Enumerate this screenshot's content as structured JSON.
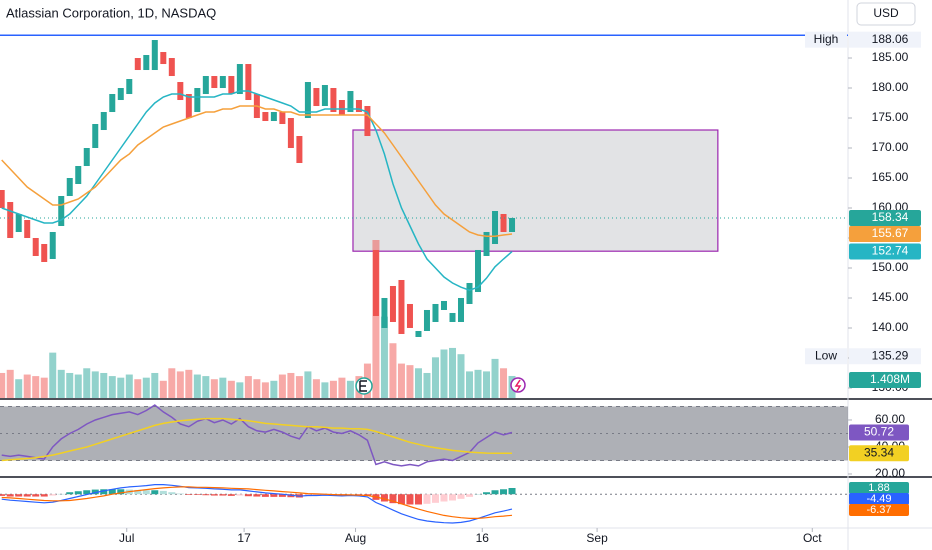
{
  "chart_data": [
    {
      "type": "candlestick",
      "title": "Atlassian Corporation, 1D, NASDAQ",
      "currency": "USD",
      "x": [
        0,
        1,
        2,
        3,
        4,
        5,
        6,
        7,
        8,
        9,
        10,
        11,
        12,
        13,
        14,
        15,
        16,
        17,
        18,
        19,
        20,
        21,
        22,
        23,
        24,
        25,
        26,
        27,
        28,
        29,
        30,
        31,
        32,
        33,
        34,
        35,
        36,
        37,
        38,
        39,
        40,
        41,
        42,
        43,
        44,
        45,
        46,
        47,
        48,
        49,
        50,
        51,
        52,
        53,
        54,
        55,
        56,
        57,
        58,
        59,
        60
      ],
      "open": [
        163,
        161,
        156,
        158,
        155,
        154,
        151.5,
        157,
        162,
        164,
        167,
        170,
        173,
        176,
        178,
        179,
        185,
        183,
        183,
        186,
        185,
        181,
        179,
        176,
        179,
        182,
        180,
        182,
        179,
        184,
        179,
        176,
        174.5,
        176,
        175,
        172,
        175,
        180,
        177,
        180,
        178,
        176,
        178,
        177,
        153,
        140,
        147,
        148,
        144,
        138.5,
        139.5,
        141,
        143,
        141,
        141,
        144,
        146,
        152,
        154,
        159,
        156
      ],
      "high": 188.06,
      "low": 135.29,
      "close": [
        160,
        155,
        159,
        155,
        152,
        151,
        156,
        162,
        165,
        167,
        170,
        174,
        176,
        179,
        180,
        181.5,
        183,
        185.5,
        188,
        184,
        182,
        178,
        175,
        180,
        182,
        180,
        182,
        179,
        184,
        178,
        175,
        174.5,
        176,
        174,
        170,
        167.5,
        181,
        177,
        180.5,
        176,
        175.5,
        179.5,
        176,
        172,
        142,
        145,
        141,
        139,
        140,
        139.5,
        143,
        144,
        144.5,
        142.5,
        145,
        147.5,
        153,
        156,
        159.5,
        156,
        158.34
      ],
      "up_color": "#26a69a",
      "down_color": "#ef5350",
      "series": [
        {
          "color": "#26b5c4",
          "values": [
            160,
            159.5,
            159,
            158.5,
            158,
            157.5,
            157.5,
            158,
            159,
            160.5,
            162,
            164,
            166,
            168,
            170,
            172,
            174,
            176,
            177.5,
            178.5,
            179,
            179,
            178.5,
            178.5,
            178.5,
            178.5,
            179,
            179,
            179.5,
            179.5,
            179,
            178.5,
            178,
            177.5,
            177,
            176,
            176,
            176,
            176.5,
            176.5,
            176.5,
            176.5,
            176.5,
            176,
            173,
            169,
            164,
            160,
            157,
            154,
            151.5,
            150,
            148.5,
            147.5,
            146.8,
            146.3,
            146.8,
            148.3,
            150.2,
            151.5,
            152.74
          ]
        },
        {
          "color": "#f5a03c",
          "values": [
            168,
            166.5,
            165,
            163.5,
            162.5,
            161.5,
            160.5,
            160.5,
            161,
            161.5,
            162.5,
            163.5,
            165,
            166.5,
            168,
            169,
            170.5,
            171.5,
            172.5,
            173.5,
            174,
            174.5,
            175,
            175.5,
            176,
            176,
            176.5,
            176.5,
            177,
            177,
            177,
            176.5,
            176.5,
            176,
            176,
            175.5,
            175.5,
            175.5,
            175.5,
            175.5,
            175.5,
            175.5,
            175.5,
            175.5,
            174,
            172.5,
            170.5,
            168.5,
            166.5,
            164.5,
            162.5,
            160.5,
            159,
            158,
            157,
            156,
            155.5,
            155.3,
            155.3,
            155.5,
            155.67
          ]
        }
      ],
      "ylim": [
        128.33,
        194.67
      ],
      "yticks": [
        {
          "value": 130,
          "label": "130.00"
        },
        {
          "value": 135,
          "label": "135.00"
        },
        {
          "value": 140,
          "label": "140.00"
        },
        {
          "value": 145,
          "label": "145.00"
        },
        {
          "value": 150,
          "label": "150.00"
        },
        {
          "value": 155,
          "label": "155.00"
        },
        {
          "value": 160,
          "label": "160.00"
        },
        {
          "value": 165,
          "label": "165.00"
        },
        {
          "value": 170,
          "label": "170.00"
        },
        {
          "value": 175,
          "label": "175.00"
        },
        {
          "value": 180,
          "label": "180.00"
        },
        {
          "value": 185,
          "label": "185.00"
        }
      ],
      "xlim": [
        -0.2,
        99.5
      ],
      "xticks": [
        {
          "value": 14.7,
          "label": "Jul"
        },
        {
          "value": 28.5,
          "label": "17"
        },
        {
          "value": 41.6,
          "label": "Aug"
        },
        {
          "value": 56.5,
          "label": "16"
        },
        {
          "value": 70,
          "label": "Sep"
        },
        {
          "value": 95.3,
          "label": "Oct"
        }
      ],
      "high_label": "High",
      "low_label": "Low",
      "hline": 188.8,
      "hline_color": "#2962ff",
      "box": {
        "x": [
          41.3,
          84.2
        ],
        "y": [
          173,
          152.8
        ],
        "color": "#9c27b0"
      }
    },
    {
      "type": "volume",
      "values": [
        1.6,
        1.8,
        1.2,
        1.5,
        1.4,
        1.3,
        2.9,
        1.8,
        1.6,
        1.5,
        1.9,
        1.7,
        1.6,
        1.4,
        1.3,
        1.5,
        1.2,
        1.3,
        1.6,
        1.1,
        1.9,
        1.7,
        1.8,
        1.5,
        1.4,
        1.2,
        1.3,
        1.1,
        1.0,
        1.4,
        1.2,
        1.0,
        1.1,
        1.5,
        1.6,
        1.4,
        1.7,
        1.2,
        1.0,
        1.1,
        1.3,
        1.1,
        1.4,
        2.2,
        10.1,
        5.2,
        3.5,
        2.2,
        2.1,
        1.9,
        1.6,
        2.6,
        3.1,
        3.2,
        2.8,
        1.7,
        1.8,
        1.7,
        2.5,
        1.9,
        1.408
      ],
      "value_labels": [
        null,
        null,
        null,
        null,
        null,
        null,
        null,
        null,
        null,
        null,
        null,
        null,
        null,
        null,
        null,
        null,
        null,
        null,
        null,
        null,
        null,
        null,
        null,
        null,
        null,
        null,
        null,
        null,
        null,
        null,
        null,
        null,
        null,
        null,
        null,
        null,
        null,
        null,
        null,
        null,
        null,
        null,
        null,
        null,
        null,
        null,
        null,
        null,
        null,
        null,
        null,
        null,
        null,
        null,
        null,
        null,
        null,
        null,
        null,
        null,
        "1.408M"
      ]
    },
    {
      "type": "rsi",
      "ylim": [
        18.5,
        74.8
      ],
      "yticks": [
        {
          "value": 20,
          "label": "20.00"
        },
        {
          "value": 40,
          "label": "40.00"
        },
        {
          "value": 60,
          "label": "60.00"
        }
      ],
      "band": [
        30,
        70
      ],
      "mid": 50,
      "series": [
        {
          "color": "#7e57c2",
          "values": [
            34,
            33,
            34,
            33,
            32,
            31,
            40,
            46,
            50,
            53,
            57,
            60,
            62,
            64,
            65,
            66,
            64,
            67,
            71,
            66,
            62,
            57,
            55,
            59,
            61,
            58,
            60,
            57,
            61,
            55,
            52,
            51,
            53,
            51,
            48,
            46,
            55,
            52,
            54,
            51,
            50,
            52,
            49,
            45,
            27,
            29,
            27,
            26,
            27,
            26,
            29,
            30,
            31,
            30,
            33,
            36,
            43,
            47,
            51,
            49,
            50.72
          ]
        },
        {
          "color": "#f2d023",
          "values": [
            30,
            30.5,
            31,
            31.5,
            32,
            33,
            34,
            35.5,
            37,
            38.5,
            40,
            42,
            44,
            46,
            48,
            50,
            52,
            54,
            56,
            57.5,
            58.5,
            59.5,
            60,
            60.5,
            61,
            61,
            61,
            60.5,
            60,
            59.5,
            58.5,
            57.5,
            57,
            56.5,
            56,
            55.5,
            55,
            55,
            54.5,
            54,
            54,
            53.5,
            53.5,
            53,
            51.5,
            49.5,
            47.5,
            45.5,
            43.5,
            42,
            40.5,
            39.5,
            38.5,
            37.5,
            36.8,
            36.2,
            35.8,
            35.5,
            35.4,
            35.3,
            35.34
          ]
        }
      ]
    },
    {
      "type": "macd",
      "ylim": [
        -10.2,
        4.9
      ],
      "hist": {
        "up_color": "#26a69a",
        "down_color": "#ef5350",
        "values": [
          -0.5,
          -0.7,
          -0.7,
          -0.7,
          -0.7,
          -0.7,
          -0.4,
          0.1,
          0.6,
          0.9,
          1.2,
          1.4,
          1.5,
          1.5,
          1.5,
          1.4,
          1.3,
          1.2,
          1.2,
          1.0,
          0.6,
          0.2,
          -0.2,
          -0.2,
          -0.3,
          -0.4,
          -0.4,
          -0.5,
          -0.4,
          -0.6,
          -0.7,
          -0.8,
          -0.8,
          -0.8,
          -0.9,
          -1.0,
          -0.6,
          -0.5,
          -0.3,
          -0.3,
          -0.3,
          -0.2,
          -0.2,
          -0.4,
          -1.7,
          -2.2,
          -2.7,
          -3.0,
          -3.1,
          -3.1,
          -2.9,
          -2.6,
          -2.2,
          -1.9,
          -1.4,
          -0.8,
          0,
          0.6,
          1.2,
          1.5,
          1.88
        ]
      },
      "series": [
        {
          "color": "#2962ff",
          "values": [
            -1.5,
            -1.8,
            -2,
            -2.2,
            -2.4,
            -2.6,
            -2.4,
            -1.9,
            -1.3,
            -0.7,
            -0.1,
            0.5,
            1.0,
            1.5,
            1.9,
            2.2,
            2.4,
            2.6,
            2.9,
            2.9,
            2.7,
            2.4,
            2.0,
            1.9,
            1.8,
            1.6,
            1.5,
            1.3,
            1.3,
            1.0,
            0.7,
            0.4,
            0.2,
            0,
            -0.3,
            -0.6,
            -0.4,
            -0.4,
            -0.3,
            -0.4,
            -0.5,
            -0.4,
            -0.5,
            -0.8,
            -2.5,
            -3.6,
            -4.8,
            -5.9,
            -6.8,
            -7.6,
            -8.1,
            -8.4,
            -8.6,
            -8.7,
            -8.5,
            -8.1,
            -7.3,
            -6.5,
            -5.6,
            -5.1,
            -4.49
          ]
        },
        {
          "color": "#ff6d00",
          "values": [
            -1,
            -1.1,
            -1.3,
            -1.5,
            -1.7,
            -1.9,
            -2.0,
            -2.0,
            -1.9,
            -1.6,
            -1.3,
            -0.9,
            -0.5,
            0,
            0.4,
            0.8,
            1.1,
            1.4,
            1.7,
            1.9,
            2.1,
            2.2,
            2.2,
            2.1,
            2.1,
            2.0,
            1.9,
            1.8,
            1.7,
            1.6,
            1.4,
            1.2,
            1.0,
            0.8,
            0.6,
            0.4,
            0.2,
            0.1,
            0,
            -0.1,
            -0.2,
            -0.2,
            -0.3,
            -0.4,
            -0.8,
            -1.4,
            -2.1,
            -2.9,
            -3.7,
            -4.5,
            -5.2,
            -5.8,
            -6.4,
            -6.8,
            -7.1,
            -7.3,
            -7.3,
            -7.1,
            -6.8,
            -6.6,
            -6.37
          ]
        }
      ]
    }
  ]
}
